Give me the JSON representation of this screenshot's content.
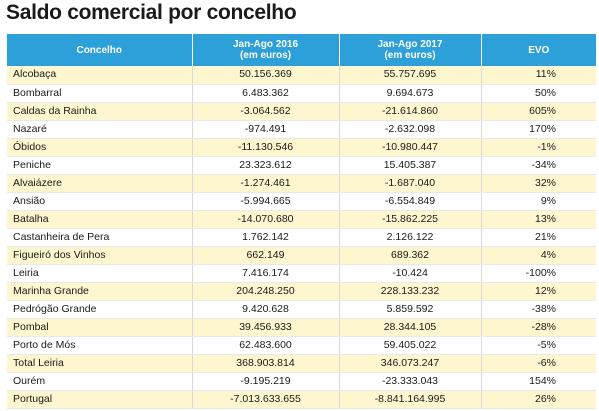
{
  "title": "Saldo comercial por concelho",
  "header": {
    "col1": "Concelho",
    "col2_line1": "Jan-Ago 2016",
    "col2_line2": "(em euros)",
    "col3_line1": "Jan-Ago 2017",
    "col3_line2": "(em euros)",
    "col4": "EVO"
  },
  "rows": [
    {
      "name": "Alcobaça",
      "y2016": "50.156.369",
      "y2017": "55.757.695",
      "evo": "11%"
    },
    {
      "name": "Bombarral",
      "y2016": "6.483.362",
      "y2017": "9.694.673",
      "evo": "50%"
    },
    {
      "name": "Caldas da Rainha",
      "y2016": "-3.064.562",
      "y2017": "-21.614.860",
      "evo": "605%"
    },
    {
      "name": "Nazaré",
      "y2016": "-974.491",
      "y2017": "-2.632.098",
      "evo": "170%"
    },
    {
      "name": "Óbidos",
      "y2016": "-11.130.546",
      "y2017": "-10.980.447",
      "evo": "-1%"
    },
    {
      "name": "Peniche",
      "y2016": "23.323.612",
      "y2017": "15.405.387",
      "evo": "-34%"
    },
    {
      "name": "Alvaiázere",
      "y2016": "-1.274.461",
      "y2017": "-1.687.040",
      "evo": "32%"
    },
    {
      "name": "Ansião",
      "y2016": "-5.994.665",
      "y2017": "-6.554.849",
      "evo": "9%"
    },
    {
      "name": "Batalha",
      "y2016": "-14.070.680",
      "y2017": "-15.862.225",
      "evo": "13%"
    },
    {
      "name": "Castanheira de Pera",
      "y2016": "1.762.142",
      "y2017": "2.126.122",
      "evo": "21%"
    },
    {
      "name": "Figueiró dos Vinhos",
      "y2016": "662.149",
      "y2017": "689.362",
      "evo": "4%"
    },
    {
      "name": "Leiria",
      "y2016": "7.416.174",
      "y2017": "-10.424",
      "evo": "-100%"
    },
    {
      "name": "Marinha Grande",
      "y2016": "204.248.250",
      "y2017": "228.133.232",
      "evo": "12%"
    },
    {
      "name": "Pedrógão Grande",
      "y2016": "9.420.628",
      "y2017": "5.859.592",
      "evo": "-38%"
    },
    {
      "name": "Pombal",
      "y2016": "39.456.933",
      "y2017": "28.344.105",
      "evo": "-28%"
    },
    {
      "name": "Porto de Mós",
      "y2016": "62.483.600",
      "y2017": "59.405.022",
      "evo": "-5%"
    },
    {
      "name": "Total Leiria",
      "y2016": "368.903.814",
      "y2017": "346.073.247",
      "evo": "-6%"
    },
    {
      "name": "Ourém",
      "y2016": "-9.195.219",
      "y2017": "-23.333.043",
      "evo": "154%"
    },
    {
      "name": "Portugal",
      "y2016": "-7.013.633.655",
      "y2017": "-8.841.164.995",
      "evo": "26%"
    }
  ],
  "colors": {
    "header_bg": "#2d9fd9",
    "stripe": "#fdf6cf"
  }
}
